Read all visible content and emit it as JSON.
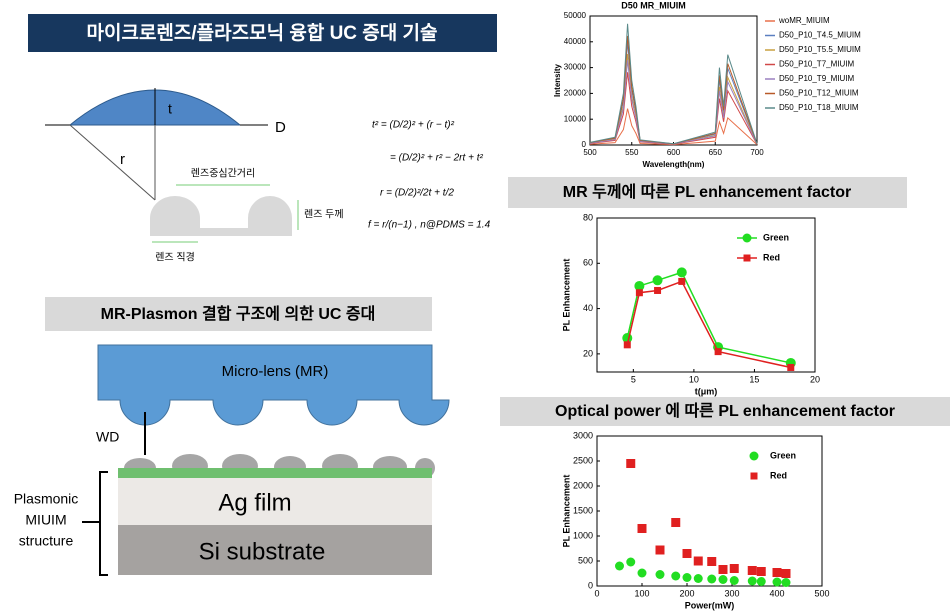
{
  "header": {
    "title": "마이크로렌즈/플라즈모닉 융합 UC 증대 기술"
  },
  "lens_diagram": {
    "t": "t",
    "D": "D",
    "r": "r",
    "center_distance": "렌즈중심간거리",
    "thickness": "렌즈 두께",
    "diameter": "렌즈 직경",
    "formulas": [
      "t² = (D/2)² + (r − t)²",
      "= (D/2)² + r² − 2rt + t²",
      "r = (D/2)²/2t + t/2",
      "f = r/(n−1) ,  n@PDMS = 1.4"
    ]
  },
  "structure": {
    "title": "MR-Plasmon 결합 구조에 의한 UC 증대",
    "microlens": "Micro-lens (MR)",
    "wd": "WD",
    "ag": "Ag film",
    "si": "Si substrate",
    "plasmonic": [
      "Plasmonic",
      "MIUIM",
      "structure"
    ]
  },
  "sections": {
    "thickness": "MR 두께에 따른 PL enhancement factor",
    "power": "Optical power 에 따른 PL enhancement factor"
  },
  "chart_data": [
    {
      "type": "line",
      "title": "D50 MR_MIUIM",
      "x_label": "Wavelength(nm)",
      "y_label": "Intensity",
      "legend": "outside right",
      "x": [
        500,
        530,
        540,
        545,
        550,
        555,
        560,
        600,
        650,
        655,
        660,
        665,
        700
      ],
      "xlim": [
        500,
        700
      ],
      "xticks": [
        500,
        550,
        600,
        650,
        700
      ],
      "ylim": [
        0,
        50000
      ],
      "yticks": [
        0,
        10000,
        20000,
        30000,
        40000,
        50000
      ],
      "series": [
        {
          "name": "woMR_MIUIM",
          "color": "#e8704a",
          "values": [
            300,
            900,
            6000,
            14100,
            7500,
            4500,
            600,
            150,
            1500,
            9000,
            4500,
            10500,
            150
          ]
        },
        {
          "name": "D50_P10_T4.5_MIUIM",
          "color": "#5b7fc0",
          "values": [
            850,
            2550,
            17000,
            39950,
            21250,
            12750,
            1700,
            425,
            4250,
            25500,
            12750,
            29750,
            425
          ]
        },
        {
          "name": "D50_P10_T5.5_MIUIM",
          "color": "#c8a040",
          "values": [
            750,
            2250,
            15000,
            35250,
            18750,
            11250,
            1500,
            375,
            3750,
            22500,
            11250,
            26250,
            375
          ]
        },
        {
          "name": "D50_P10_T7_MIUIM",
          "color": "#d04848",
          "values": [
            600,
            1800,
            12000,
            28200,
            15000,
            9000,
            1200,
            300,
            3000,
            18000,
            9000,
            21000,
            300
          ]
        },
        {
          "name": "D50_P10_T9_MIUIM",
          "color": "#9a80c0",
          "values": [
            700,
            2100,
            14000,
            32900,
            17500,
            10500,
            1400,
            350,
            3500,
            21000,
            10500,
            24500,
            350
          ]
        },
        {
          "name": "D50_P10_T12_MIUIM",
          "color": "#b85a28",
          "values": [
            900,
            2700,
            18000,
            42300,
            22500,
            13500,
            1800,
            450,
            4500,
            27000,
            13500,
            31500,
            450
          ]
        },
        {
          "name": "D50_P10_T18_MIUIM",
          "color": "#5a8a8a",
          "values": [
            1000,
            3000,
            20000,
            47000,
            25000,
            15000,
            2000,
            500,
            5000,
            30000,
            15000,
            35000,
            500
          ]
        }
      ]
    },
    {
      "type": "line",
      "x_label": "t(μm)",
      "y_label": "PL Enhancement",
      "legend": "upper right",
      "x": [
        4.5,
        5.5,
        7,
        9,
        12,
        18
      ],
      "xlim": [
        2,
        20
      ],
      "xticks": [
        5,
        10,
        15,
        20
      ],
      "ylim": [
        12,
        80
      ],
      "yticks": [
        20,
        40,
        60,
        80
      ],
      "series": [
        {
          "name": "Green",
          "color": "#22dd22",
          "marker": "circle",
          "values": [
            27,
            50,
            52.5,
            56,
            23,
            16
          ]
        },
        {
          "name": "Red",
          "color": "#e02020",
          "marker": "square",
          "values": [
            24,
            47,
            48,
            52,
            21,
            14
          ]
        }
      ]
    },
    {
      "type": "scatter",
      "x_label": "Power(mW)",
      "y_label": "PL Enhancement",
      "legend": "upper right",
      "xlim": [
        0,
        500
      ],
      "xticks": [
        0,
        100,
        200,
        300,
        400,
        500
      ],
      "ylim": [
        0,
        3000
      ],
      "yticks": [
        0,
        500,
        1000,
        1500,
        2000,
        2500,
        3000
      ],
      "series": [
        {
          "name": "Green",
          "color": "#22dd22",
          "marker": "circle",
          "x": [
            50,
            75,
            100,
            140,
            175,
            200,
            225,
            255,
            280,
            305,
            345,
            365,
            400,
            420
          ],
          "values": [
            400,
            480,
            260,
            230,
            200,
            170,
            150,
            140,
            130,
            110,
            100,
            90,
            80,
            70
          ]
        },
        {
          "name": "Red",
          "color": "#e02020",
          "marker": "square",
          "x": [
            75,
            100,
            140,
            175,
            200,
            225,
            255,
            280,
            305,
            345,
            365,
            400,
            420
          ],
          "values": [
            2450,
            1150,
            720,
            1270,
            650,
            500,
            490,
            330,
            350,
            310,
            290,
            270,
            250
          ]
        }
      ]
    }
  ]
}
